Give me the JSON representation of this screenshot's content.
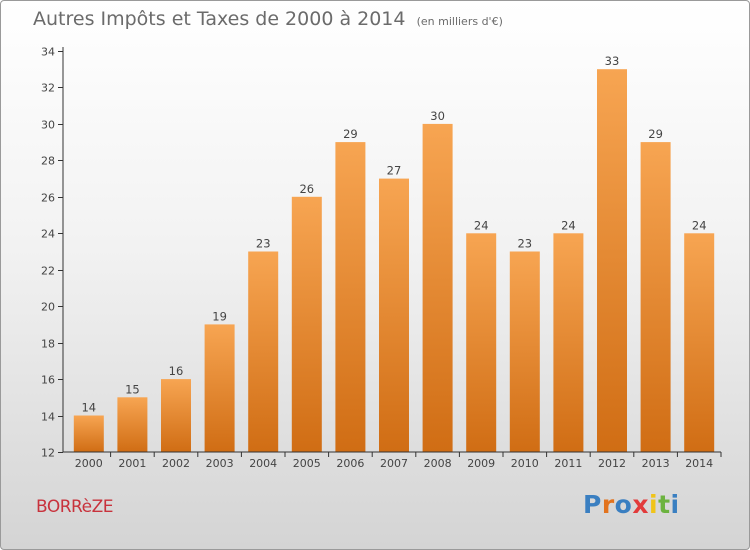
{
  "header": {
    "title": "Autres Impôts et Taxes de 2000 à 2014",
    "subtitle": "(en milliers d'€)"
  },
  "footer": {
    "commune": "BORRèZE",
    "logo_text": "Proxiti",
    "logo_colors": [
      "#3a7fc1",
      "#e2731e",
      "#3a7fc1",
      "#e23b3b",
      "#f0c419",
      "#6cb33f",
      "#3a7fc1"
    ]
  },
  "chart_data": {
    "type": "bar",
    "title": "Autres Impôts et Taxes de 2000 à 2014",
    "subtitle": "(en milliers d'€)",
    "categories": [
      "2000",
      "2001",
      "2002",
      "2003",
      "2004",
      "2005",
      "2006",
      "2007",
      "2008",
      "2009",
      "2010",
      "2011",
      "2012",
      "2013",
      "2014"
    ],
    "values": [
      14,
      15,
      16,
      19,
      23,
      26,
      29,
      27,
      30,
      24,
      23,
      24,
      33,
      29,
      24
    ],
    "ylim": [
      12,
      34
    ],
    "yticks": [
      12,
      14,
      16,
      18,
      20,
      22,
      24,
      26,
      28,
      30,
      32,
      34
    ],
    "bar_color_top": "#f7a552",
    "bar_color_bottom": "#d06d14",
    "grid": false
  }
}
